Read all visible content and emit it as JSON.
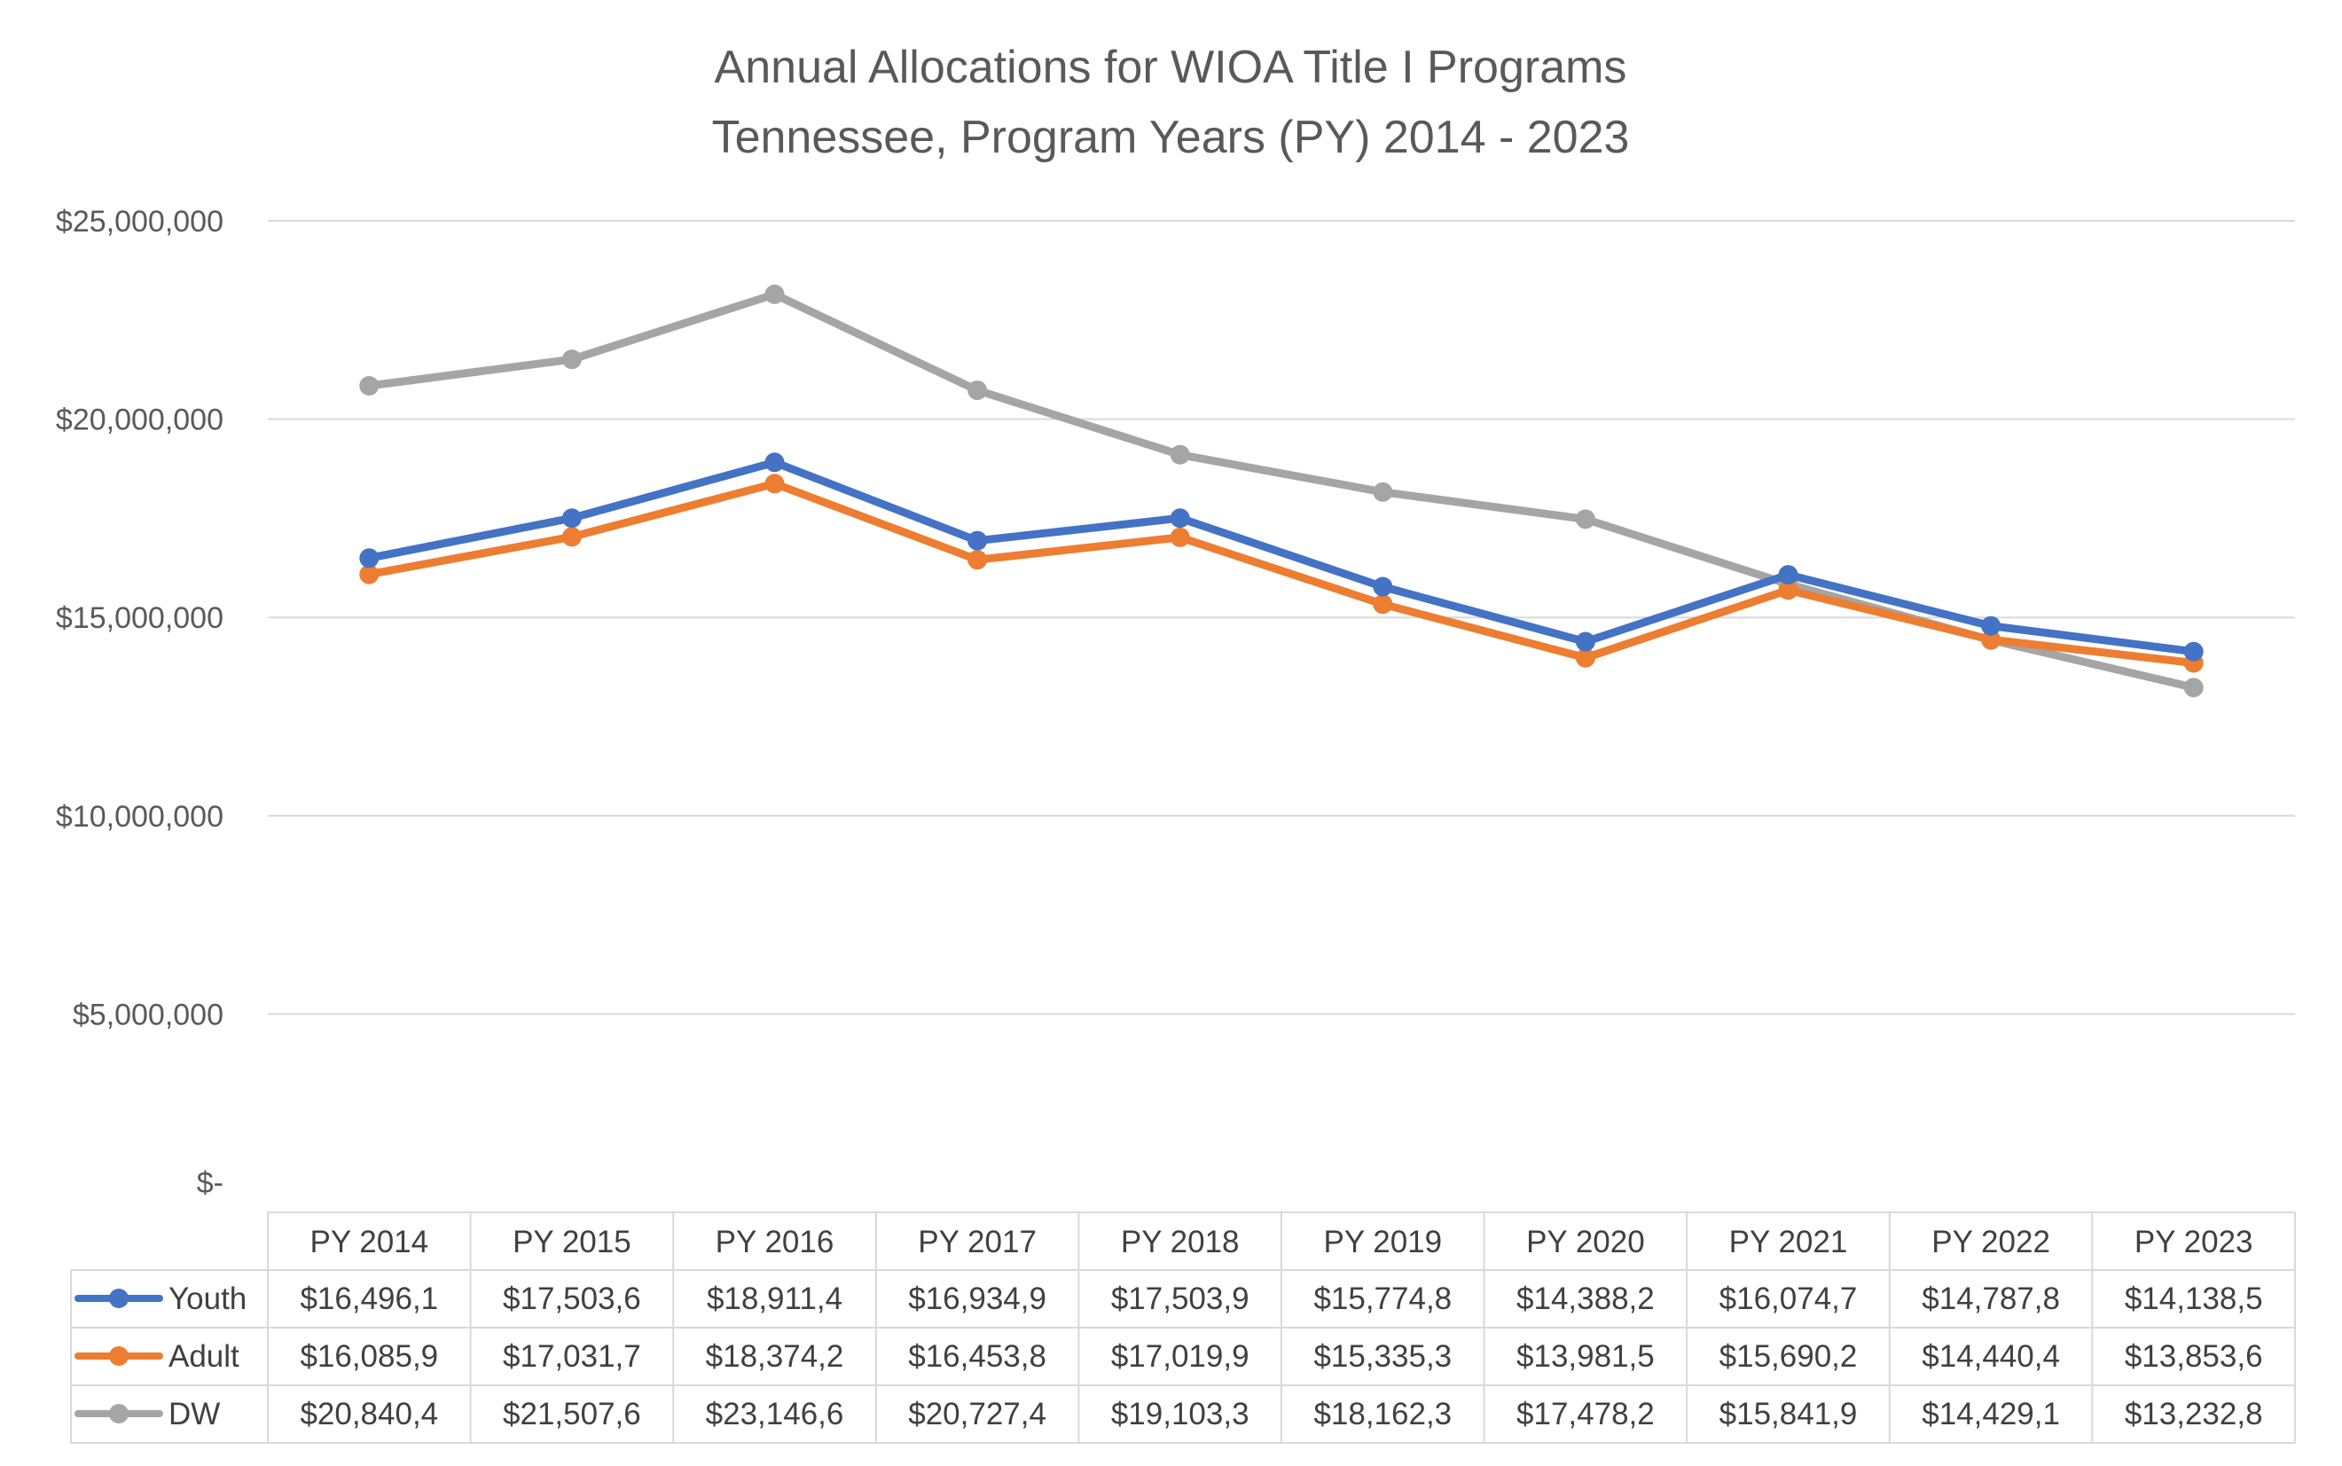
{
  "chart_data": {
    "type": "line",
    "title": "Annual Allocations for WIOA Title I Programs",
    "subtitle": "Tennessee, Program Years (PY) 2014 - 2023",
    "xlabel": "",
    "ylabel": "",
    "ylim": [
      0,
      25000000
    ],
    "y_ticks": [
      0,
      5000000,
      10000000,
      15000000,
      20000000,
      25000000
    ],
    "y_tick_labels": [
      "$-",
      "$5,000,000",
      "$10,000,000",
      "$15,000,000",
      "$20,000,000",
      "$25,000,000"
    ],
    "grid": true,
    "legend": "data-table",
    "categories": [
      "PY 2014",
      "PY 2015",
      "PY 2016",
      "PY 2017",
      "PY 2018",
      "PY 2019",
      "PY 2020",
      "PY 2021",
      "PY 2022",
      "PY 2023"
    ],
    "series": [
      {
        "name": "Youth",
        "color": "#4472c4",
        "values": [
          16496100,
          17503600,
          18911400,
          16934900,
          17503900,
          15774800,
          14388200,
          16074700,
          14787800,
          14138500
        ],
        "table_labels": [
          "$16,496,1",
          "$17,503,6",
          "$18,911,4",
          "$16,934,9",
          "$17,503,9",
          "$15,774,8",
          "$14,388,2",
          "$16,074,7",
          "$14,787,8",
          "$14,138,5"
        ]
      },
      {
        "name": "Adult",
        "color": "#ed7d31",
        "values": [
          16085900,
          17031700,
          18374200,
          16453800,
          17019900,
          15335300,
          13981500,
          15690200,
          14440400,
          13853600
        ],
        "table_labels": [
          "$16,085,9",
          "$17,031,7",
          "$18,374,2",
          "$16,453,8",
          "$17,019,9",
          "$15,335,3",
          "$13,981,5",
          "$15,690,2",
          "$14,440,4",
          "$13,853,6"
        ]
      },
      {
        "name": "DW",
        "color": "#a5a5a5",
        "values": [
          20840400,
          21507600,
          23146600,
          20727400,
          19103300,
          18162300,
          17478200,
          15841900,
          14429100,
          13232800
        ],
        "table_labels": [
          "$20,840,4",
          "$21,507,6",
          "$23,146,6",
          "$20,727,4",
          "$19,103,3",
          "$18,162,3",
          "$17,478,2",
          "$15,841,9",
          "$14,429,1",
          "$13,232,8"
        ]
      }
    ]
  }
}
